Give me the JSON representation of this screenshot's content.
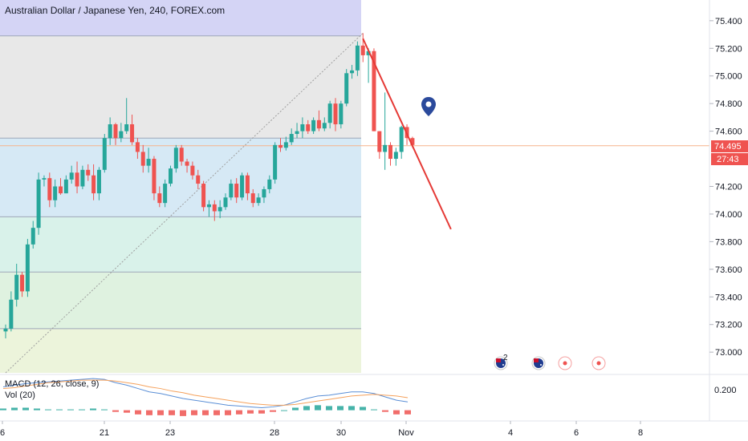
{
  "header": {
    "title": "Australian Dollar / Japanese Yen, 240, FOREX.com"
  },
  "indicators": {
    "macd_label": "MACD (12, 26, close, 9)",
    "vol_label": "Vol (20)"
  },
  "colors": {
    "up": "#26a69a",
    "down": "#ef5350",
    "trendline": "#e53935",
    "macd_line": "#5b8fd6",
    "signal_line": "#f5a25d",
    "marker": "#2b4a9c",
    "fib_bands": [
      "#d4d4f5",
      "#e8e8e8",
      "#d6e9f5",
      "#d9f2ea",
      "#dff2e0",
      "#ecf4db"
    ]
  },
  "icons": {
    "price_pin": "map-pin-icon",
    "events": [
      "australia-flag-icon",
      "australia-flag-icon",
      "event-dot-icon",
      "event-dot-icon"
    ]
  },
  "event_badge": "2",
  "chart_data": {
    "type": "candlestick",
    "title": "Australian Dollar / Japanese Yen, 240, FOREX.com",
    "x_tick_labels": [
      "6",
      "21",
      "23",
      "28",
      "30",
      "Nov",
      "4",
      "6",
      "8"
    ],
    "y_tick_labels": [
      "75.400",
      "75.200",
      "75.000",
      "74.800",
      "74.600",
      "74.200",
      "74.000",
      "73.800",
      "73.600",
      "73.400",
      "73.200",
      "73.000"
    ],
    "ylim": [
      72.85,
      75.55
    ],
    "current_price": "74.495",
    "countdown": "27:43",
    "macd_tick_label": "0.200",
    "fib_levels": [
      75.29,
      74.55,
      73.98,
      73.58,
      73.17
    ],
    "trendline": [
      {
        "bar": 65,
        "price": 75.27
      },
      {
        "bar": 81,
        "price": 73.89
      }
    ],
    "diagonal": [
      {
        "bar": 0,
        "price": 72.85
      },
      {
        "bar": 65,
        "price": 75.31
      }
    ],
    "ohlc": [
      [
        73.15,
        73.2,
        73.1,
        73.17
      ],
      [
        73.17,
        73.44,
        73.15,
        73.38
      ],
      [
        73.38,
        73.64,
        73.33,
        73.56
      ],
      [
        73.56,
        73.58,
        73.4,
        73.44
      ],
      [
        73.44,
        73.82,
        73.4,
        73.78
      ],
      [
        73.78,
        73.95,
        73.75,
        73.9
      ],
      [
        73.9,
        74.3,
        73.85,
        74.25
      ],
      [
        74.25,
        74.28,
        74.2,
        74.26
      ],
      [
        74.26,
        74.3,
        74.05,
        74.1
      ],
      [
        74.1,
        74.25,
        74.05,
        74.2
      ],
      [
        74.2,
        74.26,
        74.14,
        74.15
      ],
      [
        74.15,
        74.28,
        74.15,
        74.25
      ],
      [
        74.25,
        74.35,
        74.22,
        74.3
      ],
      [
        74.3,
        74.38,
        74.15,
        74.2
      ],
      [
        74.2,
        74.35,
        74.18,
        74.32
      ],
      [
        74.32,
        74.36,
        74.24,
        74.28
      ],
      [
        74.28,
        74.36,
        74.1,
        74.15
      ],
      [
        74.15,
        74.34,
        74.1,
        74.32
      ],
      [
        74.32,
        74.58,
        74.3,
        74.55
      ],
      [
        74.55,
        74.7,
        74.5,
        74.65
      ],
      [
        74.65,
        74.66,
        74.5,
        74.55
      ],
      [
        74.55,
        74.66,
        74.52,
        74.6
      ],
      [
        74.6,
        74.84,
        74.58,
        74.65
      ],
      [
        74.65,
        74.72,
        74.5,
        74.52
      ],
      [
        74.52,
        74.55,
        74.4,
        74.45
      ],
      [
        74.45,
        74.5,
        74.3,
        74.35
      ],
      [
        74.35,
        74.48,
        74.3,
        74.4
      ],
      [
        74.4,
        74.42,
        74.1,
        74.15
      ],
      [
        74.15,
        74.2,
        74.05,
        74.08
      ],
      [
        74.08,
        74.25,
        74.05,
        74.22
      ],
      [
        74.22,
        74.35,
        74.2,
        74.33
      ],
      [
        74.33,
        74.5,
        74.3,
        74.48
      ],
      [
        74.48,
        74.5,
        74.35,
        74.38
      ],
      [
        74.38,
        74.4,
        74.3,
        74.35
      ],
      [
        74.35,
        74.38,
        74.25,
        74.28
      ],
      [
        74.28,
        74.32,
        74.18,
        74.22
      ],
      [
        74.22,
        74.24,
        74.02,
        74.05
      ],
      [
        74.05,
        74.1,
        73.98,
        74.07
      ],
      [
        74.07,
        74.1,
        73.95,
        74.02
      ],
      [
        74.02,
        74.1,
        73.97,
        74.05
      ],
      [
        74.05,
        74.15,
        74.03,
        74.12
      ],
      [
        74.12,
        74.25,
        74.1,
        74.22
      ],
      [
        74.22,
        74.26,
        74.08,
        74.12
      ],
      [
        74.12,
        74.3,
        74.1,
        74.28
      ],
      [
        74.28,
        74.3,
        74.1,
        74.15
      ],
      [
        74.15,
        74.18,
        74.05,
        74.08
      ],
      [
        74.08,
        74.15,
        74.06,
        74.12
      ],
      [
        74.12,
        74.2,
        74.08,
        74.18
      ],
      [
        74.18,
        74.28,
        74.15,
        74.25
      ],
      [
        74.25,
        74.52,
        74.22,
        74.5
      ],
      [
        74.5,
        74.55,
        74.45,
        74.48
      ],
      [
        74.48,
        74.56,
        74.46,
        74.52
      ],
      [
        74.52,
        74.62,
        74.5,
        74.58
      ],
      [
        74.58,
        74.66,
        74.55,
        74.6
      ],
      [
        74.6,
        74.7,
        74.55,
        74.65
      ],
      [
        74.65,
        74.68,
        74.58,
        74.6
      ],
      [
        74.6,
        74.7,
        74.58,
        74.68
      ],
      [
        74.68,
        74.75,
        74.6,
        74.62
      ],
      [
        74.62,
        74.7,
        74.6,
        74.66
      ],
      [
        74.66,
        74.82,
        74.62,
        74.8
      ],
      [
        74.8,
        74.84,
        74.6,
        74.65
      ],
      [
        74.65,
        74.82,
        74.62,
        74.8
      ],
      [
        74.8,
        75.05,
        74.78,
        75.02
      ],
      [
        75.02,
        75.08,
        74.98,
        75.04
      ],
      [
        75.04,
        75.25,
        75.0,
        75.22
      ],
      [
        75.22,
        75.31,
        75.1,
        75.15
      ],
      [
        75.15,
        75.2,
        74.95,
        75.18
      ],
      [
        75.18,
        75.2,
        74.6,
        74.6
      ],
      [
        74.6,
        74.6,
        74.4,
        74.45
      ],
      [
        74.45,
        74.88,
        74.32,
        74.5
      ],
      [
        74.5,
        74.52,
        74.35,
        74.4
      ],
      [
        74.4,
        74.48,
        74.35,
        74.45
      ],
      [
        74.45,
        74.64,
        74.4,
        74.63
      ],
      [
        74.63,
        74.65,
        74.5,
        74.55
      ],
      [
        74.55,
        74.56,
        74.48,
        74.5
      ]
    ],
    "macd": {
      "macd_line": [
        0.28,
        0.3,
        0.32,
        0.33,
        0.34,
        0.35,
        0.36,
        0.37,
        0.38,
        0.37,
        0.33,
        0.3,
        0.26,
        0.22,
        0.2,
        0.17,
        0.14,
        0.12,
        0.1,
        0.08,
        0.06,
        0.05,
        0.04,
        0.03,
        0.04,
        0.06,
        0.1,
        0.14,
        0.17,
        0.18,
        0.2,
        0.22,
        0.22,
        0.2,
        0.16,
        0.12,
        0.1
      ],
      "signal_line": [
        0.26,
        0.27,
        0.29,
        0.31,
        0.33,
        0.34,
        0.35,
        0.36,
        0.36,
        0.36,
        0.35,
        0.33,
        0.31,
        0.28,
        0.26,
        0.23,
        0.21,
        0.18,
        0.16,
        0.14,
        0.12,
        0.1,
        0.08,
        0.07,
        0.06,
        0.06,
        0.07,
        0.09,
        0.11,
        0.13,
        0.15,
        0.17,
        0.18,
        0.19,
        0.18,
        0.17,
        0.15
      ],
      "histogram": [
        0.02,
        0.03,
        0.03,
        0.02,
        0.01,
        0.01,
        0.01,
        0.01,
        0.02,
        0.01,
        -0.02,
        -0.03,
        -0.05,
        -0.06,
        -0.06,
        -0.06,
        -0.07,
        -0.06,
        -0.06,
        -0.06,
        -0.06,
        -0.05,
        -0.04,
        -0.04,
        -0.02,
        0.0,
        0.03,
        0.05,
        0.06,
        0.05,
        0.05,
        0.05,
        0.04,
        0.01,
        -0.02,
        -0.05,
        -0.05
      ]
    }
  }
}
